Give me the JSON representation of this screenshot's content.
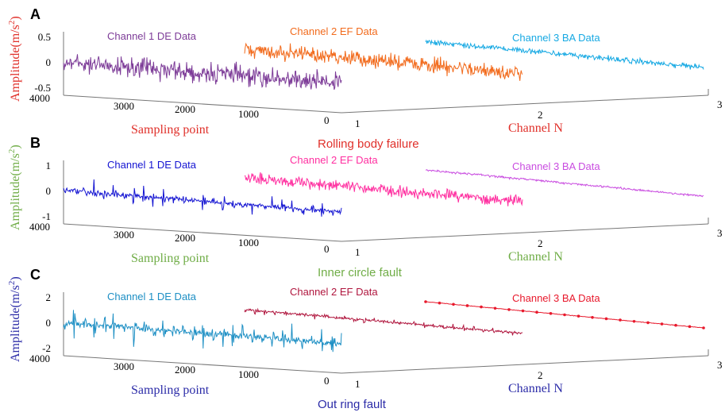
{
  "figure": {
    "background": "#ffffff"
  },
  "panels": [
    {
      "letter": "A",
      "caption": "Rolling body failure",
      "caption_color": "#e0302a",
      "axis_color": "#e0302a",
      "chart_data": {
        "type": "line",
        "projection": "3d-waterfall",
        "ylabel": "Amplitude(m/s",
        "ylabel_sup": "2",
        "ylabel_close": ")",
        "xlabel": "Sampling point",
        "zlabel": "Channel N",
        "y_ticks": [
          "0.5",
          "0",
          "-0.5"
        ],
        "y_tick_values": [
          0.5,
          0,
          -0.5
        ],
        "y_range": [
          -0.6,
          0.6
        ],
        "x_ticks": [
          "4000",
          "3000",
          "2000",
          "1000",
          "0"
        ],
        "x_tick_values": [
          4000,
          3000,
          2000,
          1000,
          0
        ],
        "z_ticks": [
          "1",
          "2",
          "3"
        ],
        "series": [
          {
            "name": "Channel 1 DE Data",
            "channel": 1,
            "color": "#7d3c98",
            "signal": "noise",
            "amplitude": 0.28,
            "label_color": "#7d3c98"
          },
          {
            "name": "Channel 2 EF Data",
            "channel": 2,
            "color": "#f26b1d",
            "signal": "noise",
            "amplitude": 0.22,
            "label_color": "#f26b1d"
          },
          {
            "name": "Channel 3 BA Data",
            "channel": 3,
            "color": "#17a9e3",
            "signal": "noise",
            "amplitude": 0.08,
            "label_color": "#17a9e3"
          }
        ]
      }
    },
    {
      "letter": "B",
      "caption": "Inner circle fault",
      "caption_color": "#70ad47",
      "axis_color": "#70ad47",
      "chart_data": {
        "type": "line",
        "projection": "3d-waterfall",
        "ylabel": "Amplitude(m/s",
        "ylabel_sup": "2",
        "ylabel_close": ")",
        "xlabel": "Sampling point",
        "zlabel": "Channel N",
        "y_ticks": [
          "1",
          "0",
          "-1"
        ],
        "y_tick_values": [
          1,
          0,
          -1
        ],
        "y_range": [
          -1.3,
          1.3
        ],
        "x_ticks": [
          "4000",
          "3000",
          "2000",
          "1000",
          "0"
        ],
        "x_tick_values": [
          4000,
          3000,
          2000,
          1000,
          0
        ],
        "z_ticks": [
          "1",
          "2",
          "3"
        ],
        "series": [
          {
            "name": "Channel 1 DE Data",
            "channel": 1,
            "color": "#1414d2",
            "signal": "impulse",
            "amplitude": 0.55,
            "label_color": "#1414d2"
          },
          {
            "name": "Channel 2 EF Data",
            "channel": 2,
            "color": "#ff2fa0",
            "signal": "noise",
            "amplitude": 0.32,
            "label_color": "#ff2fa0"
          },
          {
            "name": "Channel 3 BA Data",
            "channel": 3,
            "color": "#c94ce0",
            "signal": "noise",
            "amplitude": 0.06,
            "label_color": "#c94ce0"
          }
        ]
      }
    },
    {
      "letter": "C",
      "caption": "Out ring fault",
      "caption_color": "#2c2ca8",
      "axis_color": "#2c2ca8",
      "chart_data": {
        "type": "line",
        "projection": "3d-waterfall",
        "ylabel": "Amplitude(m/s",
        "ylabel_sup": "2",
        "ylabel_close": ")",
        "xlabel": "Sampling point",
        "zlabel": "Channel N",
        "y_ticks": [
          "2",
          "0",
          "-2"
        ],
        "y_tick_values": [
          2,
          0,
          -2
        ],
        "y_range": [
          -2.8,
          2.8
        ],
        "x_ticks": [
          "4000",
          "3000",
          "2000",
          "1000",
          "0"
        ],
        "x_tick_values": [
          4000,
          3000,
          2000,
          1000,
          0
        ],
        "z_ticks": [
          "1",
          "2",
          "3"
        ],
        "series": [
          {
            "name": "Channel 1 DE Data",
            "channel": 1,
            "color": "#1d8fc4",
            "signal": "impulse",
            "amplitude": 1.6,
            "label_color": "#1d8fc4"
          },
          {
            "name": "Channel 2 EF Data",
            "channel": 2,
            "color": "#b0163e",
            "signal": "impulse-small",
            "amplitude": 0.45,
            "label_color": "#b0163e"
          },
          {
            "name": "Channel 3 BA Data",
            "channel": 3,
            "color": "#e8192c",
            "signal": "dotted",
            "amplitude": 0.1,
            "label_color": "#e8192c"
          }
        ]
      }
    }
  ]
}
